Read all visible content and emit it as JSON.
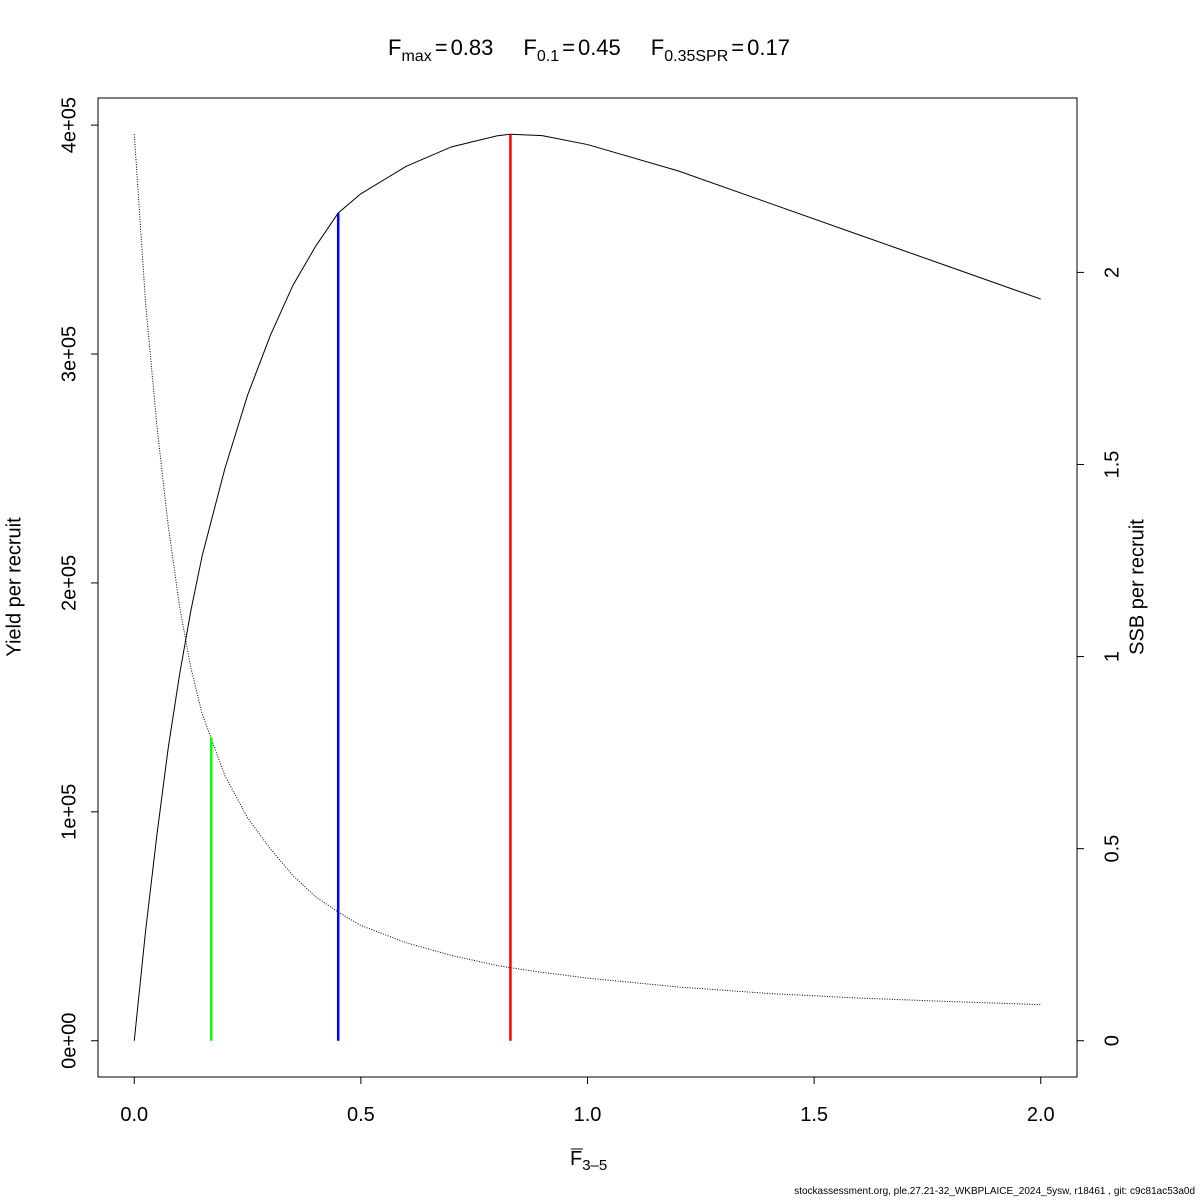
{
  "chart_data": {
    "type": "line",
    "title": [
      {
        "symbol": "F",
        "subscript": "max",
        "operator": "=",
        "value": 0.83
      },
      {
        "symbol": "F",
        "subscript": "0.1",
        "operator": "=",
        "value": 0.45
      },
      {
        "symbol": "F",
        "subscript": "0.35SPR",
        "operator": "=",
        "value": 0.17
      }
    ],
    "xlabel": {
      "symbol": "F",
      "subscript": "3–5"
    },
    "ylabel": "Yield per recruit",
    "y2label": "SSB per recruit",
    "footer": "stockassessment.org, ple.27.21-32_WKBPLAICE_2024_5ysw, r18461 , git: c9c81ac53a0d",
    "x": [
      0,
      0.025,
      0.05,
      0.075,
      0.1,
      0.125,
      0.15,
      0.2,
      0.25,
      0.3,
      0.35,
      0.4,
      0.45,
      0.5,
      0.6,
      0.7,
      0.8,
      0.83,
      0.9,
      1.0,
      1.2,
      1.4,
      1.6,
      1.8,
      2.0
    ],
    "series": [
      {
        "color": "#000000",
        "style": "solid",
        "axis": "y",
        "values": [
          0,
          48000,
          90000,
          128000,
          160000,
          188000,
          212000,
          250000,
          282000,
          308000,
          330000,
          347000,
          361600,
          370000,
          382000,
          390500,
          395300,
          396000,
          395400,
          391500,
          380000,
          366000,
          352000,
          338000,
          324000
        ]
      },
      {
        "color": "#000000",
        "style": "dotted",
        "axis": "y2",
        "values": [
          2.36,
          1.92,
          1.6,
          1.34,
          1.13,
          0.97,
          0.85,
          0.69,
          0.58,
          0.5,
          0.43,
          0.375,
          0.335,
          0.3,
          0.255,
          0.222,
          0.196,
          0.19,
          0.178,
          0.163,
          0.14,
          0.123,
          0.111,
          0.102,
          0.094
        ]
      }
    ],
    "reference_lines": [
      {
        "x": 0.17,
        "top": 0.79,
        "axis": "y2",
        "color": "#00ff00"
      },
      {
        "x": 0.45,
        "top": 361600,
        "axis": "y",
        "color": "#0000ff"
      },
      {
        "x": 0.83,
        "top": 396000,
        "axis": "y",
        "color": "#ff0000"
      }
    ],
    "xlim": [
      -0.08,
      2.08
    ],
    "ylim": [
      -15840,
      411840
    ],
    "y2lim": [
      -0.0944,
      2.454
    ],
    "xticks": [
      {
        "value": 0,
        "label": "0.0"
      },
      0.5,
      {
        "value": 1,
        "label": "1.0"
      },
      1.5,
      {
        "value": 2,
        "label": "2.0"
      }
    ],
    "yticks": [
      {
        "value": 0,
        "label": "0e+00"
      },
      {
        "value": 100000,
        "label": "1e+05"
      },
      {
        "value": 200000,
        "label": "2e+05"
      },
      {
        "value": 300000,
        "label": "3e+05"
      },
      {
        "value": 400000,
        "label": "4e+05"
      }
    ],
    "y2ticks": [
      0,
      0.5,
      1,
      1.5,
      2
    ]
  }
}
